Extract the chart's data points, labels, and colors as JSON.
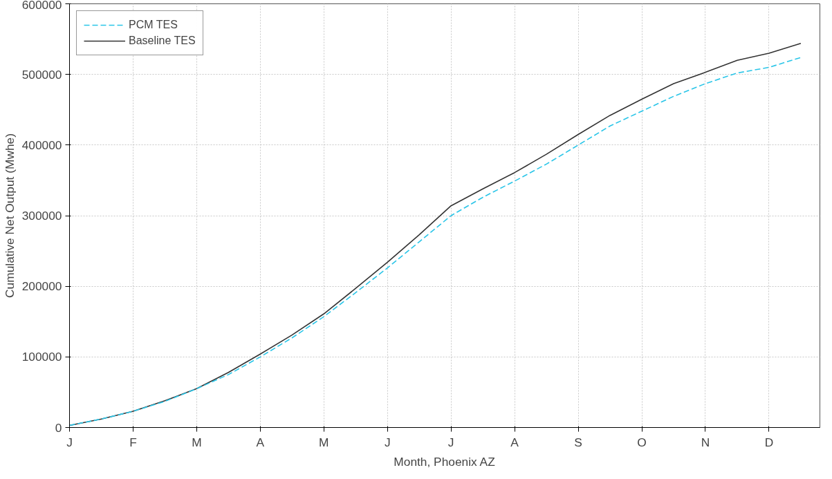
{
  "chart_data": {
    "type": "line",
    "xlabel": "Month, Phoenix AZ",
    "ylabel": "Cumulative Net Output (Mwhe)",
    "categories": [
      "J",
      null,
      "F",
      null,
      "M",
      null,
      "A",
      null,
      "M",
      null,
      "J",
      null,
      "J",
      null,
      "A",
      null,
      "S",
      null,
      "O",
      null,
      "N",
      null,
      "D",
      null
    ],
    "ylim": [
      0,
      600000
    ],
    "yticks": [
      0,
      100000,
      200000,
      300000,
      400000,
      500000,
      600000
    ],
    "grid": true,
    "legend": "top left",
    "marker": "none",
    "series": [
      {
        "name": "PCM TES",
        "color": "#29c5e8",
        "line_style": "dashed",
        "values": [
          3000,
          12000,
          23000,
          37000,
          55000,
          75000,
          100000,
          127000,
          157000,
          191000,
          226000,
          263000,
          300000,
          326000,
          349000,
          373000,
          400000,
          427000,
          448000,
          469000,
          487000,
          502000,
          510000,
          524000
        ]
      },
      {
        "name": "Baseline TES",
        "color": "#333333",
        "line_style": "solid",
        "values": [
          3000,
          12000,
          23000,
          38000,
          55000,
          78000,
          104000,
          131000,
          161000,
          197000,
          234000,
          273000,
          314000,
          338000,
          361000,
          387000,
          415000,
          442000,
          465000,
          487000,
          503000,
          520000,
          530000,
          544000
        ]
      }
    ]
  }
}
